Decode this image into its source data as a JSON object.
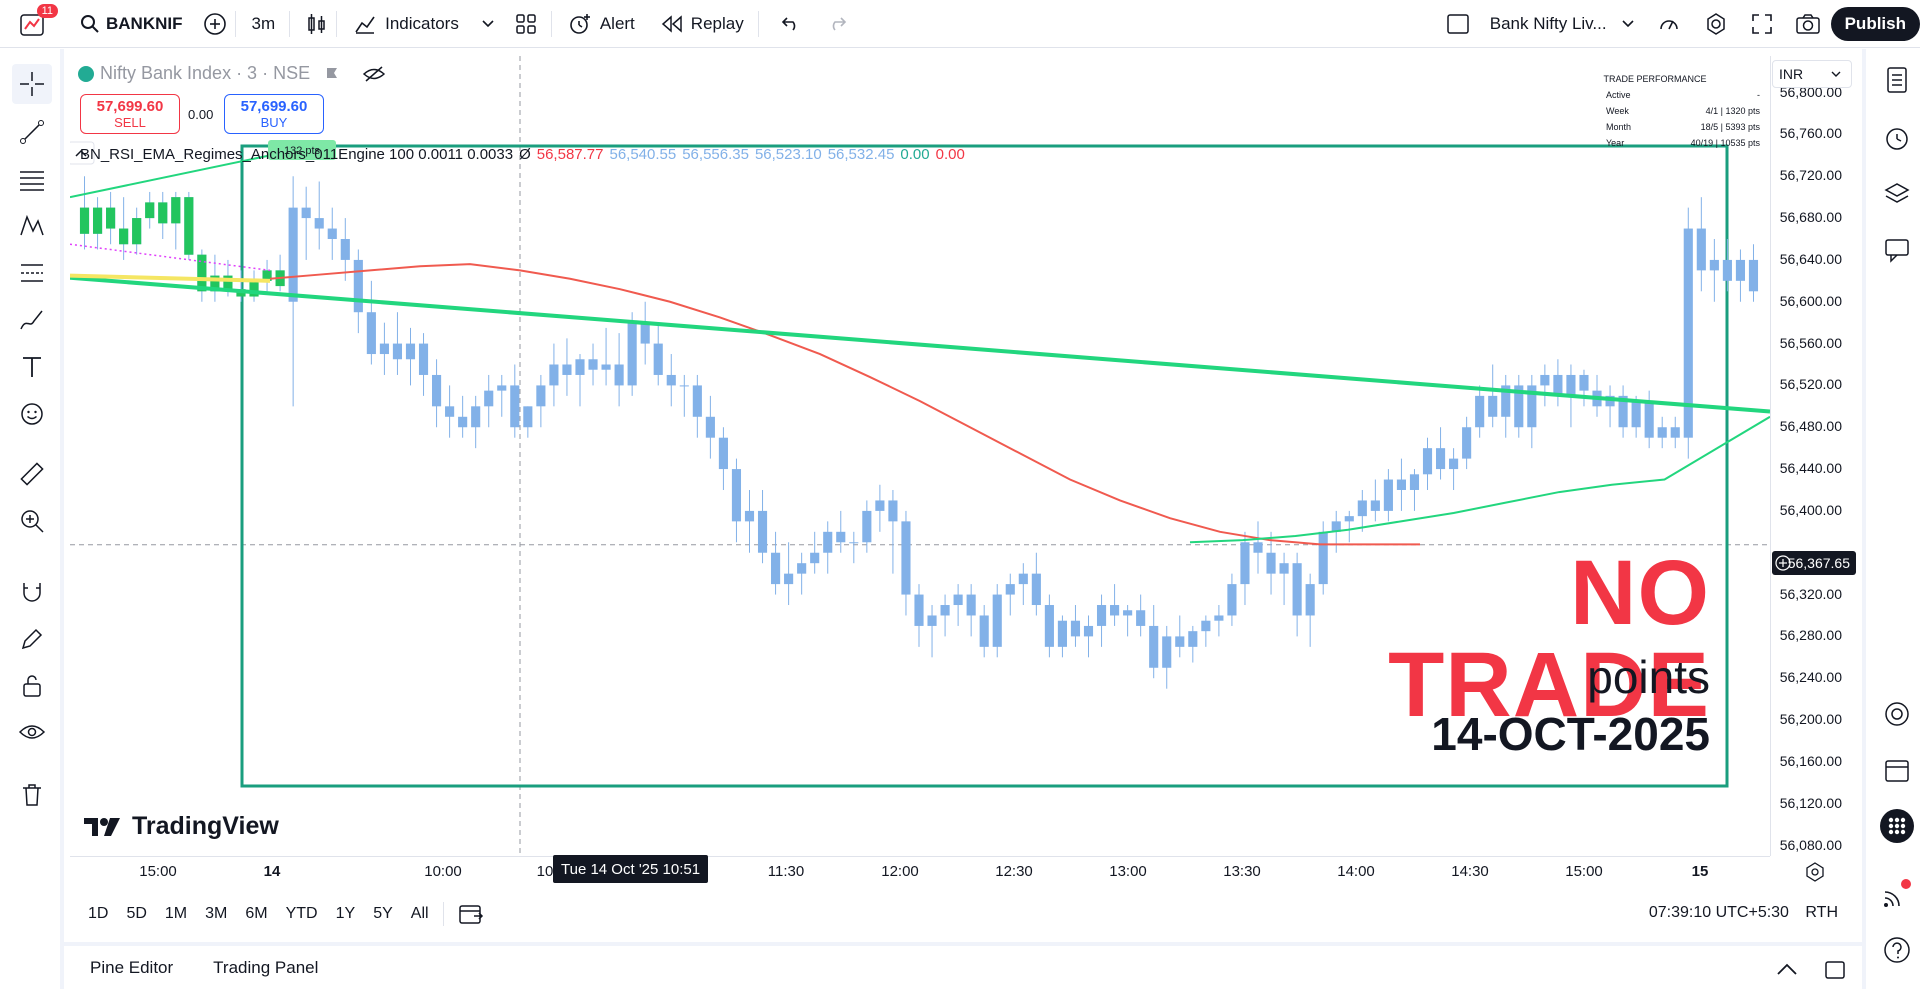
{
  "topbar": {
    "notification_count": "11",
    "symbol": "BANKNIF",
    "interval": "3m",
    "indicators_label": "Indicators",
    "alert_label": "Alert",
    "replay_label": "Replay",
    "layout_name": "Bank Nifty Liv...",
    "publish_label": "Publish"
  },
  "legend": {
    "title": "Nifty Bank Index · 3 · NSE",
    "sell_price": "57,699.60",
    "sell_label": "SELL",
    "spread": "0.00",
    "buy_price": "57,699.60",
    "buy_label": "BUY",
    "indicator_name": "BN_RSI_EMA_Regimes_Anchors_011Engine 100 0.0011 0.0033",
    "indicator_symbol": "Ø",
    "v1": "56,587.77",
    "v2": "56,540.55",
    "v3": "56,556.35",
    "v4": "56,523.10",
    "v5": "56,532.45",
    "v6": "0.00",
    "v7": "0.00"
  },
  "performance": {
    "title": "TRADE PERFORMANCE",
    "rows": [
      {
        "label": "Active",
        "value": "-"
      },
      {
        "label": "Week",
        "value": "4/1 | 1320 pts"
      },
      {
        "label": "Month",
        "value": "18/5 | 5393 pts"
      },
      {
        "label": "Year",
        "value": "40/19 | 10535 pts"
      }
    ]
  },
  "annotations": {
    "pts_tag": "132 pts",
    "headline": "NO TRADE",
    "points_text": "points",
    "date_text": "14-OCT-2025"
  },
  "brand": "TradingView",
  "price_scale": {
    "currency": "INR",
    "labels": [
      "56,800.00",
      "56,760.00",
      "56,720.00",
      "56,680.00",
      "56,640.00",
      "56,600.00",
      "56,560.00",
      "56,520.00",
      "56,480.00",
      "56,440.00",
      "56,400.00",
      "56,320.00",
      "56,280.00",
      "56,240.00",
      "56,200.00",
      "56,160.00",
      "56,120.00",
      "56,080.00"
    ],
    "current_price": "56,367.65"
  },
  "time_axis": {
    "labels": [
      "15:00",
      "14",
      "10:00",
      "10",
      "11:30",
      "12:00",
      "12:30",
      "13:00",
      "13:30",
      "14:00",
      "14:30",
      "15:00",
      "15"
    ],
    "crosshair_label": "Tue 14 Oct '25   10:51"
  },
  "range_bar": {
    "ranges": [
      "1D",
      "5D",
      "1M",
      "3M",
      "6M",
      "YTD",
      "1Y",
      "5Y",
      "All"
    ],
    "clock": "07:39:10 UTC+5:30",
    "session": "RTH"
  },
  "bottom_panel": {
    "tabs": [
      "Pine Editor",
      "Trading Panel"
    ]
  },
  "colors": {
    "up": "#82b1e8",
    "down": "#82b1e8",
    "ema": "#f05a4f",
    "trend": "#22d67e",
    "box": "#1a9e7e",
    "headline": "#f23645"
  },
  "chart_data": {
    "type": "candlestick",
    "ylim": [
      56070,
      56835
    ],
    "ohlc": [
      [
        56690,
        56720,
        56650,
        56665
      ],
      [
        56665,
        56700,
        56650,
        56690
      ],
      [
        56690,
        56705,
        56655,
        56670
      ],
      [
        56670,
        56700,
        56640,
        56655
      ],
      [
        56655,
        56690,
        56645,
        56680
      ],
      [
        56680,
        56705,
        56670,
        56695
      ],
      [
        56695,
        56705,
        56660,
        56675
      ],
      [
        56675,
        56705,
        56650,
        56700
      ],
      [
        56700,
        56705,
        56640,
        56645
      ],
      [
        56645,
        56650,
        56600,
        56610
      ],
      [
        56610,
        56645,
        56600,
        56625
      ],
      [
        56625,
        56640,
        56605,
        56612
      ],
      [
        56612,
        56630,
        56600,
        56605
      ],
      [
        56605,
        56630,
        56600,
        56620
      ],
      [
        56620,
        56640,
        56610,
        56630
      ],
      [
        56630,
        56645,
        56610,
        56615
      ],
      [
        56600,
        56720,
        56500,
        56690
      ],
      [
        56690,
        56710,
        56640,
        56680
      ],
      [
        56680,
        56715,
        56650,
        56670
      ],
      [
        56670,
        56690,
        56640,
        56660
      ],
      [
        56660,
        56680,
        56620,
        56640
      ],
      [
        56640,
        56650,
        56570,
        56590
      ],
      [
        56590,
        56620,
        56540,
        56550
      ],
      [
        56550,
        56580,
        56530,
        56560
      ],
      [
        56560,
        56590,
        56530,
        56545
      ],
      [
        56545,
        56575,
        56520,
        56560
      ],
      [
        56560,
        56570,
        56510,
        56530
      ],
      [
        56530,
        56545,
        56480,
        56500
      ],
      [
        56500,
        56520,
        56470,
        56490
      ],
      [
        56490,
        56510,
        56470,
        56480
      ],
      [
        56480,
        56510,
        56460,
        56500
      ],
      [
        56500,
        56530,
        56480,
        56515
      ],
      [
        56515,
        56530,
        56490,
        56520
      ],
      [
        56520,
        56540,
        56470,
        56480
      ],
      [
        56480,
        56500,
        56470,
        56500
      ],
      [
        56500,
        56530,
        56480,
        56520
      ],
      [
        56520,
        56560,
        56500,
        56540
      ],
      [
        56540,
        56565,
        56510,
        56530
      ],
      [
        56530,
        56550,
        56500,
        56545
      ],
      [
        56545,
        56560,
        56520,
        56535
      ],
      [
        56535,
        56575,
        56520,
        56540
      ],
      [
        56540,
        56570,
        56500,
        56520
      ],
      [
        56520,
        56590,
        56510,
        56580
      ],
      [
        56580,
        56600,
        56540,
        56560
      ],
      [
        56560,
        56580,
        56520,
        56530
      ],
      [
        56530,
        56550,
        56500,
        56520
      ],
      [
        56520,
        56530,
        56490,
        56520
      ],
      [
        56520,
        56530,
        56470,
        56490
      ],
      [
        56490,
        56510,
        56450,
        56470
      ],
      [
        56470,
        56480,
        56420,
        56440
      ],
      [
        56440,
        56450,
        56370,
        56390
      ],
      [
        56390,
        56420,
        56360,
        56400
      ],
      [
        56400,
        56420,
        56350,
        56360
      ],
      [
        56360,
        56380,
        56320,
        56330
      ],
      [
        56330,
        56370,
        56310,
        56340
      ],
      [
        56340,
        56360,
        56320,
        56350
      ],
      [
        56350,
        56380,
        56340,
        56360
      ],
      [
        56360,
        56390,
        56340,
        56380
      ],
      [
        56380,
        56400,
        56360,
        56370
      ],
      [
        56370,
        56380,
        56350,
        56370
      ],
      [
        56370,
        56410,
        56360,
        56400
      ],
      [
        56400,
        56425,
        56380,
        56410
      ],
      [
        56410,
        56420,
        56340,
        56390
      ],
      [
        56390,
        56400,
        56300,
        56320
      ],
      [
        56320,
        56330,
        56270,
        56290
      ],
      [
        56290,
        56310,
        56260,
        56300
      ],
      [
        56300,
        56320,
        56280,
        56310
      ],
      [
        56310,
        56330,
        56290,
        56320
      ],
      [
        56320,
        56330,
        56280,
        56300
      ],
      [
        56300,
        56310,
        56260,
        56270
      ],
      [
        56270,
        56330,
        56260,
        56320
      ],
      [
        56320,
        56340,
        56300,
        56330
      ],
      [
        56330,
        56350,
        56310,
        56340
      ],
      [
        56340,
        56360,
        56300,
        56310
      ],
      [
        56310,
        56320,
        56260,
        56270
      ],
      [
        56270,
        56300,
        56260,
        56295
      ],
      [
        56295,
        56310,
        56270,
        56280
      ],
      [
        56280,
        56300,
        56260,
        56290
      ],
      [
        56290,
        56320,
        56270,
        56310
      ],
      [
        56310,
        56330,
        56290,
        56300
      ],
      [
        56300,
        56310,
        56280,
        56305
      ],
      [
        56305,
        56320,
        56280,
        56290
      ],
      [
        56290,
        56310,
        56240,
        56250
      ],
      [
        56250,
        56290,
        56230,
        56280
      ],
      [
        56280,
        56300,
        56260,
        56270
      ],
      [
        56270,
        56290,
        56255,
        56285
      ],
      [
        56285,
        56300,
        56270,
        56295
      ],
      [
        56295,
        56310,
        56280,
        56300
      ],
      [
        56300,
        56340,
        56290,
        56330
      ],
      [
        56330,
        56380,
        56310,
        56370
      ],
      [
        56370,
        56390,
        56340,
        56360
      ],
      [
        56360,
        56380,
        56320,
        56340
      ],
      [
        56340,
        56360,
        56310,
        56350
      ],
      [
        56350,
        56360,
        56280,
        56300
      ],
      [
        56300,
        56340,
        56270,
        56330
      ],
      [
        56330,
        56390,
        56320,
        56380
      ],
      [
        56380,
        56400,
        56360,
        56390
      ],
      [
        56390,
        56400,
        56370,
        56395
      ],
      [
        56395,
        56420,
        56380,
        56410
      ],
      [
        56410,
        56430,
        56390,
        56400
      ],
      [
        56400,
        56440,
        56390,
        56430
      ],
      [
        56430,
        56450,
        56400,
        56420
      ],
      [
        56420,
        56440,
        56400,
        56435
      ],
      [
        56435,
        56470,
        56420,
        56460
      ],
      [
        56460,
        56480,
        56430,
        56440
      ],
      [
        56440,
        56460,
        56420,
        56450
      ],
      [
        56450,
        56490,
        56440,
        56480
      ],
      [
        56480,
        56520,
        56470,
        56510
      ],
      [
        56510,
        56540,
        56480,
        56490
      ],
      [
        56490,
        56530,
        56470,
        56520
      ],
      [
        56520,
        56530,
        56470,
        56480
      ],
      [
        56480,
        56530,
        56460,
        56520
      ],
      [
        56520,
        56540,
        56500,
        56530
      ],
      [
        56530,
        56545,
        56500,
        56510
      ],
      [
        56510,
        56540,
        56480,
        56530
      ],
      [
        56530,
        56535,
        56500,
        56515
      ],
      [
        56515,
        56530,
        56490,
        56500
      ],
      [
        56500,
        56520,
        56480,
        56510
      ],
      [
        56510,
        56520,
        56470,
        56480
      ],
      [
        56480,
        56510,
        56470,
        56505
      ],
      [
        56505,
        56515,
        56460,
        56470
      ],
      [
        56470,
        56490,
        56460,
        56480
      ],
      [
        56480,
        56490,
        56460,
        56470
      ],
      [
        56470,
        56690,
        56450,
        56670
      ],
      [
        56670,
        56700,
        56610,
        56630
      ],
      [
        56630,
        56660,
        56600,
        56640
      ],
      [
        56640,
        56660,
        56610,
        56620
      ],
      [
        56620,
        56650,
        56600,
        56640
      ],
      [
        56640,
        56655,
        56600,
        56610
      ]
    ],
    "ema": [
      [
        56622,
        56626,
        56630,
        56634,
        56636,
        56630,
        56622,
        56612,
        56600,
        56585,
        56568,
        56550,
        56528,
        56505,
        56480,
        56455,
        56430,
        56410,
        56393,
        56380,
        56372,
        56368,
        56368,
        56368
      ]
    ],
    "trend_points": [
      [
        56700,
        56610
      ],
      [
        56600,
        56495
      ]
    ],
    "anchor_line": [
      56370,
      56372,
      56376,
      56382,
      56390,
      56398,
      56408,
      56418,
      56425,
      56430,
      56460,
      56490
    ]
  }
}
